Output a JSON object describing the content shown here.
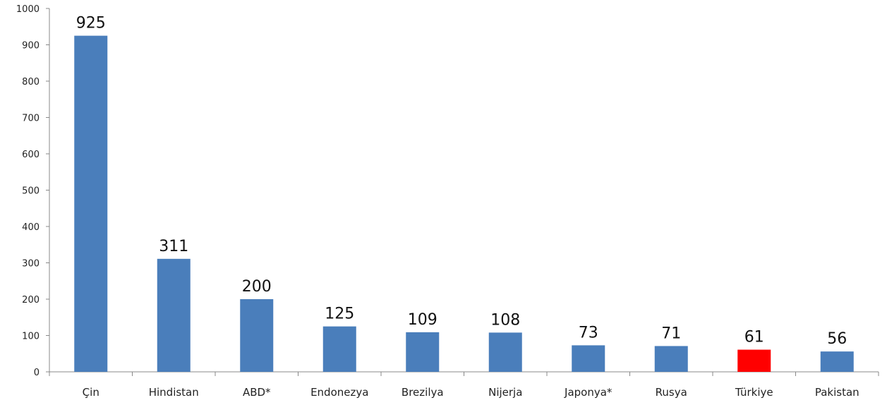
{
  "chart_data": {
    "type": "bar",
    "categories": [
      "Çin",
      "Hindistan",
      "ABD*",
      "Endonezya",
      "Brezilya",
      "Nijerja",
      "Japonya*",
      "Rusya",
      "Türkiye",
      "Pakistan"
    ],
    "values": [
      925,
      311,
      200,
      125,
      109,
      108,
      73,
      71,
      61,
      56
    ],
    "data_labels": [
      "925",
      "311",
      "200",
      "125",
      "109",
      "108",
      "73",
      "71",
      "61",
      "56"
    ],
    "title": "",
    "xlabel": "",
    "ylabel": "",
    "ylim": [
      0,
      1000
    ],
    "yticks": [
      0,
      100,
      200,
      300,
      400,
      500,
      600,
      700,
      800,
      900,
      1000
    ],
    "ytick_labels": [
      "0",
      "100",
      "200",
      "300",
      "400",
      "500",
      "600",
      "700",
      "800",
      "900",
      "1000"
    ],
    "grid": false,
    "colors": {
      "bar": "#4a7ebb",
      "highlight": "#ff0000",
      "axis": "#888888"
    },
    "highlight_category": "Türkiye"
  }
}
